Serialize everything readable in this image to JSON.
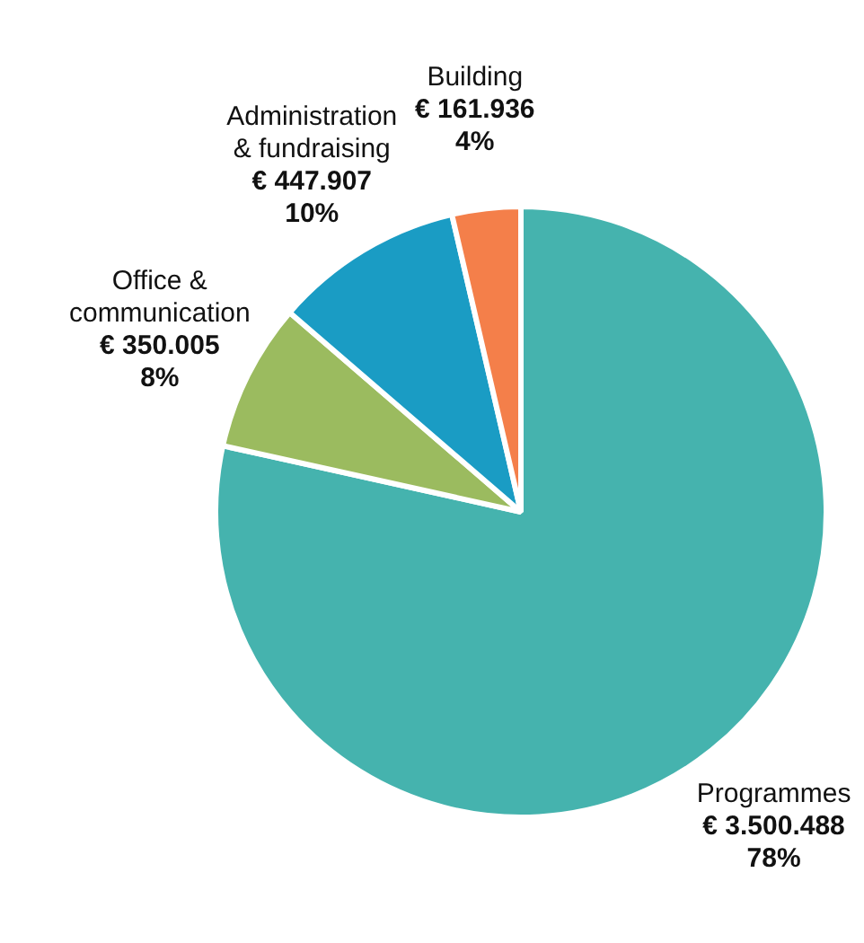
{
  "chart_data": {
    "type": "pie",
    "categories": [
      "Programmes",
      "Office &\ncommunication",
      "Administration\n& fundraising",
      "Building"
    ],
    "values": [
      3500488,
      350005,
      447907,
      161936
    ],
    "colors": [
      "#45b3ae",
      "#9bbb5f",
      "#1a9cc4",
      "#f47f4a"
    ],
    "value_labels": [
      "€ 3.500.488\n78%",
      "€ 350.005\n8%",
      "€ 447.907\n10%",
      "€ 161.936\n4%"
    ],
    "legend": false
  }
}
